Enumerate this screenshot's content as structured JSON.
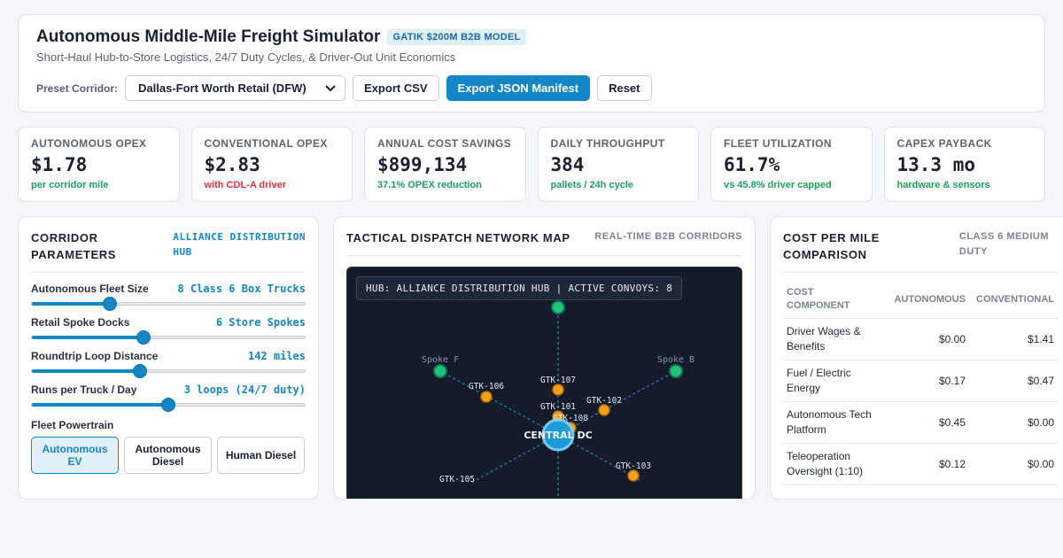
{
  "header": {
    "title": "Autonomous Middle-Mile Freight Simulator",
    "badge": "GATIK $200M B2B MODEL",
    "subtitle": "Short-Haul Hub-to-Store Logistics, 24/7 Duty Cycles, & Driver-Out Unit Economics",
    "preset_label": "Preset Corridor:",
    "preset_value": "Dallas-Fort Worth Retail (DFW)",
    "export_csv": "Export CSV",
    "export_json": "Export JSON Manifest",
    "reset": "Reset"
  },
  "kpis": [
    {
      "label": "AUTONOMOUS OPEX",
      "value": "$1.78",
      "sub": "per corridor mile",
      "tone": "green"
    },
    {
      "label": "CONVENTIONAL OPEX",
      "value": "$2.83",
      "sub": "with CDL-A driver",
      "tone": "red"
    },
    {
      "label": "ANNUAL COST SAVINGS",
      "value": "$899,134",
      "sub": "37.1% OPEX reduction",
      "tone": "green"
    },
    {
      "label": "DAILY THROUGHPUT",
      "value": "384",
      "sub": "pallets / 24h cycle",
      "tone": "green"
    },
    {
      "label": "FLEET UTILIZATION",
      "value": "61.7%",
      "sub": "vs 45.8% driver capped",
      "tone": "green"
    },
    {
      "label": "CAPEX PAYBACK",
      "value": "13.3 mo",
      "sub": "hardware & sensors",
      "tone": "green"
    }
  ],
  "params": {
    "title_line1": "CORRIDOR",
    "title_line2": "PARAMETERS",
    "tag_line1": "ALLIANCE DISTRIBUTION",
    "tag_line2": "HUB",
    "sliders": [
      {
        "label": "Autonomous Fleet Size",
        "value": "8 Class 6 Box Trucks",
        "fraction": 0.285
      },
      {
        "label": "Retail Spoke Docks",
        "value": "6 Store Spokes",
        "fraction": 0.41
      },
      {
        "label": "Roundtrip Loop Distance",
        "value": "142 miles",
        "fraction": 0.395
      },
      {
        "label": "Runs per Truck / Day",
        "value": "3 loops (24/7 duty)",
        "fraction": 0.5
      }
    ],
    "powertrain_label": "Fleet Powertrain",
    "powertrain_options": [
      "Autonomous EV",
      "Autonomous Diesel",
      "Human Diesel"
    ],
    "powertrain_selected": "Autonomous EV"
  },
  "map": {
    "title": "TACTICAL DISPATCH NETWORK MAP",
    "tag": "REAL-TIME B2B CORRIDORS",
    "hud": "HUB: ALLIANCE DISTRIBUTION HUB | ACTIVE CONVOYS: 8",
    "hub_label": "CENTRAL DC",
    "spokes": [
      "Spoke F",
      "Spoke B"
    ],
    "trucks": [
      "GTK-106",
      "GTK-107",
      "GTK-102",
      "GTK-101",
      "GTK-108",
      "GTK-103",
      "GTK-105"
    ]
  },
  "costs": {
    "title_line1": "COST PER MILE",
    "title_line2": "COMPARISON",
    "tag_line1": "CLASS 6 MEDIUM",
    "tag_line2": "DUTY",
    "headers": [
      "COST COMPONENT",
      "AUTONOMOUS",
      "CONVENTIONAL"
    ],
    "rows": [
      {
        "component": "Driver Wages & Benefits",
        "autonomous": "$0.00",
        "conventional": "$1.41"
      },
      {
        "component": "Fuel / Electric Energy",
        "autonomous": "$0.17",
        "conventional": "$0.47"
      },
      {
        "component": "Autonomous Tech Platform",
        "autonomous": "$0.45",
        "conventional": "$0.00"
      },
      {
        "component": "Teleoperation Oversight (1:10)",
        "autonomous": "$0.12",
        "conventional": "$0.00"
      }
    ]
  }
}
